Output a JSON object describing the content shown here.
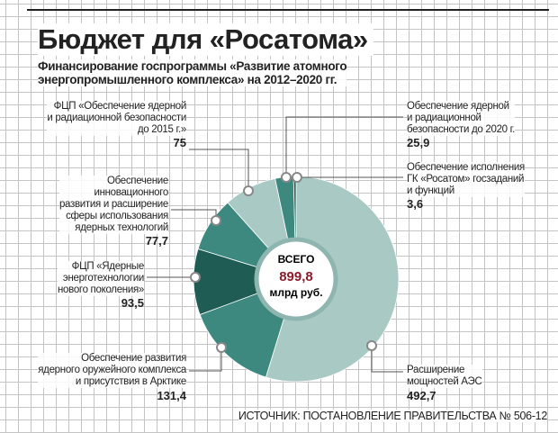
{
  "chart_data": {
    "type": "donut",
    "title": "Бюджет для «Росатома»",
    "subtitle": "Финансирование госпрограммы «Развитие атомного\nэнергопромышленного комплекса» на 2012–2020 гг.",
    "categories": [
      "Расширение\nмощностей АЭС",
      "Обеспечение развития\nядерного оружейного комплекса\nи присутствия в Арктике",
      "ФЦП «Ядерные\nэнерготехнологии\nнового поколения»",
      "Обеспечение\nинновационного\nразвития и расширение\nсферы использования\nядерных технологий",
      "ФЦП «Обеспечение ядерной\nи радиационной безопасности\nдо 2015 г.»",
      "Обеспечение ядерной\nи радиационной\nбезопасности до 2020 г.",
      "Обеспечение исполнения\nГК «Росатом» госзаданий\nи функций"
    ],
    "values": [
      492.7,
      131.4,
      93.5,
      77.7,
      75,
      25.9,
      3.6
    ],
    "value_labels": [
      "492,7",
      "131,4",
      "93,5",
      "77,7",
      "75",
      "25,9",
      "3,6"
    ],
    "colors": [
      "#a9c9c5",
      "#3e897f",
      "#1e5c54",
      "#3e897f",
      "#a9c9c5",
      "#3e897f",
      "#1e5c54"
    ],
    "total_title": "ВСЕГО",
    "total": {
      "value": 899.8,
      "label": "899,8"
    },
    "total_unit": "млрд руб.",
    "source": "ИСТОЧНИК: ПОСТАНОВЛЕНИЕ ПРАВИТЕЛЬСТВА № 506-12"
  }
}
